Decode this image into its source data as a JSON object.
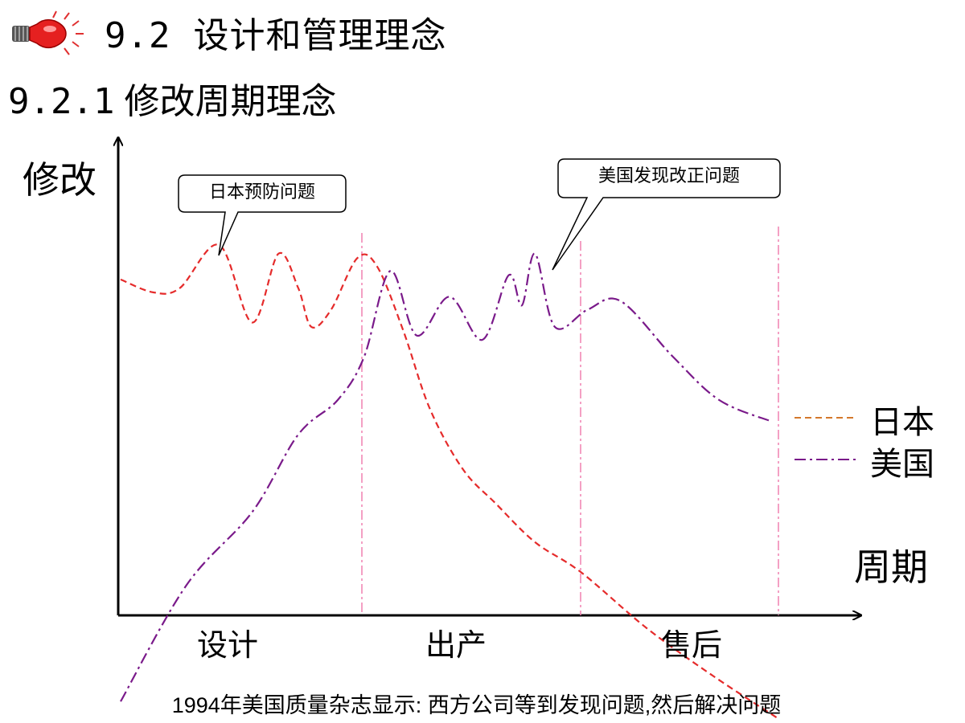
{
  "header": {
    "section_number": "9.2",
    "section_title": "设计和管理理念",
    "subsection_number": "9.2.1",
    "subsection_title": "修改周期理念",
    "icon": "lightbulb-icon"
  },
  "chart_data": {
    "type": "line",
    "ylabel": "修改",
    "xlabel": "周期",
    "phases": [
      "设计",
      "出产",
      "售后"
    ],
    "series": [
      {
        "name": "日本",
        "color": "#e52b2b",
        "style": "dashed",
        "x": [
          0,
          0.05,
          0.09,
          0.15,
          0.2,
          0.24,
          0.27,
          0.29,
          0.32,
          0.36,
          0.39,
          0.43,
          0.47,
          0.52,
          0.57,
          0.63,
          0.7,
          0.8,
          0.9,
          1.0
        ],
        "values": [
          0.78,
          0.75,
          0.76,
          0.86,
          0.68,
          0.84,
          0.76,
          0.67,
          0.71,
          0.83,
          0.81,
          0.66,
          0.48,
          0.34,
          0.26,
          0.17,
          0.1,
          -0.03,
          -0.14,
          -0.24
        ]
      },
      {
        "name": "美国",
        "color": "#7a1a8a",
        "style": "dash-dot",
        "x": [
          0,
          0.1,
          0.2,
          0.27,
          0.33,
          0.37,
          0.41,
          0.45,
          0.5,
          0.55,
          0.59,
          0.61,
          0.63,
          0.66,
          0.71,
          0.76,
          0.84,
          0.91,
          0.99
        ],
        "values": [
          -0.2,
          0.07,
          0.24,
          0.42,
          0.5,
          0.6,
          0.8,
          0.65,
          0.74,
          0.64,
          0.79,
          0.72,
          0.84,
          0.67,
          0.71,
          0.73,
          0.6,
          0.5,
          0.45
        ]
      }
    ],
    "annotations": [
      {
        "text": "日本预防问题",
        "target_series": "日本"
      },
      {
        "text": "美国发现改正问题",
        "target_series": "美国"
      }
    ],
    "legend": "right",
    "grid": false
  },
  "caption": "1994年美国质量杂志显示: 西方公司等到发现问题,然后解决问题",
  "colors": {
    "japan": "#e52b2b",
    "usa": "#7a1a8a",
    "legend_japan": "#d4782b",
    "divider": "#f080b0"
  }
}
